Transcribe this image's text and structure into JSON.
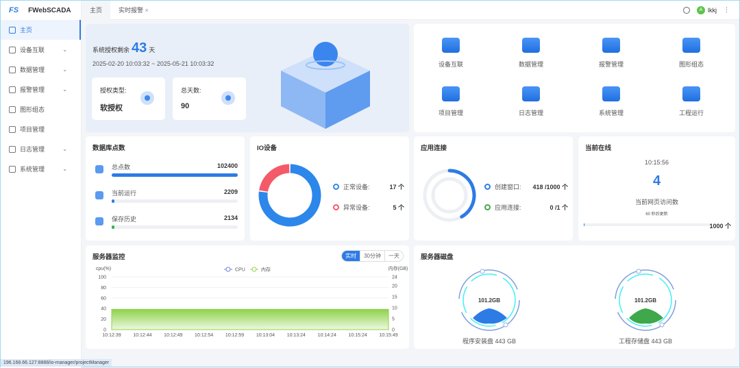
{
  "app": {
    "logo": "FS",
    "title": "FWebSCADA"
  },
  "sidebar": {
    "items": [
      {
        "label": "主页",
        "icon": "home-icon",
        "active": true
      },
      {
        "label": "设备互联",
        "icon": "server-icon",
        "chevron": true
      },
      {
        "label": "数据管理",
        "icon": "data-icon",
        "chevron": true
      },
      {
        "label": "报警管理",
        "icon": "alarm-icon",
        "chevron": true
      },
      {
        "label": "图形组态",
        "icon": "graphics-icon"
      },
      {
        "label": "项目管理",
        "icon": "project-icon"
      },
      {
        "label": "日志管理",
        "icon": "log-icon",
        "chevron": true
      },
      {
        "label": "系统管理",
        "icon": "gear-icon",
        "chevron": true
      }
    ]
  },
  "header": {
    "tabs": [
      {
        "label": "主页",
        "active": true
      },
      {
        "label": "实时报警",
        "closable": true
      }
    ],
    "user": "lkkj",
    "avatar": "A"
  },
  "license": {
    "prefix": "系统授权剩余",
    "days": "43",
    "unit": "天",
    "range": "2025-02-20 10:03:32 ~ 2025-05-21 10:03:32",
    "type_label": "授权类型:",
    "type_value": "软授权",
    "total_label": "总天数:",
    "total_value": "90"
  },
  "quick": [
    {
      "label": "设备互联"
    },
    {
      "label": "数据管理"
    },
    {
      "label": "报警管理"
    },
    {
      "label": "图形组态"
    },
    {
      "label": "项目管理"
    },
    {
      "label": "日志管理"
    },
    {
      "label": "系统管理"
    },
    {
      "label": "工程运行"
    }
  ],
  "db": {
    "title": "数据库点数",
    "rows": [
      {
        "label": "总点数",
        "value": "102400",
        "percent": 100,
        "color": "#2d7be5"
      },
      {
        "label": "当前运行",
        "value": "2209",
        "percent": 2.2,
        "color": "#2d7be5"
      },
      {
        "label": "保存历史",
        "value": "2134",
        "percent": 2.1,
        "color": "#2bb84a"
      }
    ]
  },
  "io": {
    "title": "IO设备",
    "normal_label": "正常设备:",
    "normal_value": "17 个",
    "abnormal_label": "异常设备:",
    "abnormal_value": "5 个",
    "normal": 17,
    "abnormal": 5,
    "colors": {
      "normal": "#2d87ea",
      "abnormal": "#f45a68"
    }
  },
  "app_conn": {
    "title": "应用连接",
    "window_label": "创建窗口:",
    "window_value": "418 /1000 个",
    "conn_label": "应用连接:",
    "conn_value": "0 /1 个",
    "window_used": 418,
    "window_max": 1000
  },
  "online": {
    "title": "当前在线",
    "time": "10:15:56",
    "count": "4",
    "label": "当前网页访问数",
    "refresh": "60 秒后更新",
    "max": "1000 个",
    "percent": 0.4
  },
  "monitor": {
    "title": "服务器监控",
    "ranges": [
      "实时",
      "30分钟",
      "一天"
    ],
    "active_range": "实时"
  },
  "chart_data": {
    "type": "area",
    "left_label": "cpu(%)",
    "right_label": "内存(GB)",
    "legend": [
      "CPU",
      "内存"
    ],
    "legend_placement": "top-center",
    "x": [
      "10:12:39",
      "10:12:44",
      "10:12:49",
      "10:12:54",
      "10:12:59",
      "10:13:04",
      "10:13:24",
      "10:14:24",
      "10:15:24",
      "10:15:49"
    ],
    "yleft": [
      0,
      100
    ],
    "yleft_ticks": [
      0,
      20,
      40,
      60,
      80,
      100
    ],
    "yright": [
      0,
      24
    ],
    "yright_ticks": [
      0,
      5,
      10,
      15,
      20,
      24
    ],
    "series": [
      {
        "name": "CPU",
        "axis": "left",
        "values": [
          6,
          1,
          1,
          1,
          1,
          1,
          6,
          1,
          1,
          8
        ],
        "color": "#5bc5c8"
      },
      {
        "name": "内存",
        "axis": "right",
        "values": [
          9.2,
          9.2,
          9.2,
          9.2,
          9.2,
          9.2,
          9.2,
          9.2,
          9.2,
          9.2
        ],
        "color": "#8fd24a"
      }
    ],
    "grid": true
  },
  "disk": {
    "title": "服务器磁盘",
    "items": [
      {
        "used": "101.2GB",
        "label": "程序安装盘 443 GB",
        "color": "#2d7be5"
      },
      {
        "used": "101.2GB",
        "label": "工程存储盘 443 GB",
        "color": "#3fa84a"
      }
    ]
  },
  "statusbar": {
    "url": "196.168.66.127:8888/io-manager/projectManager"
  }
}
